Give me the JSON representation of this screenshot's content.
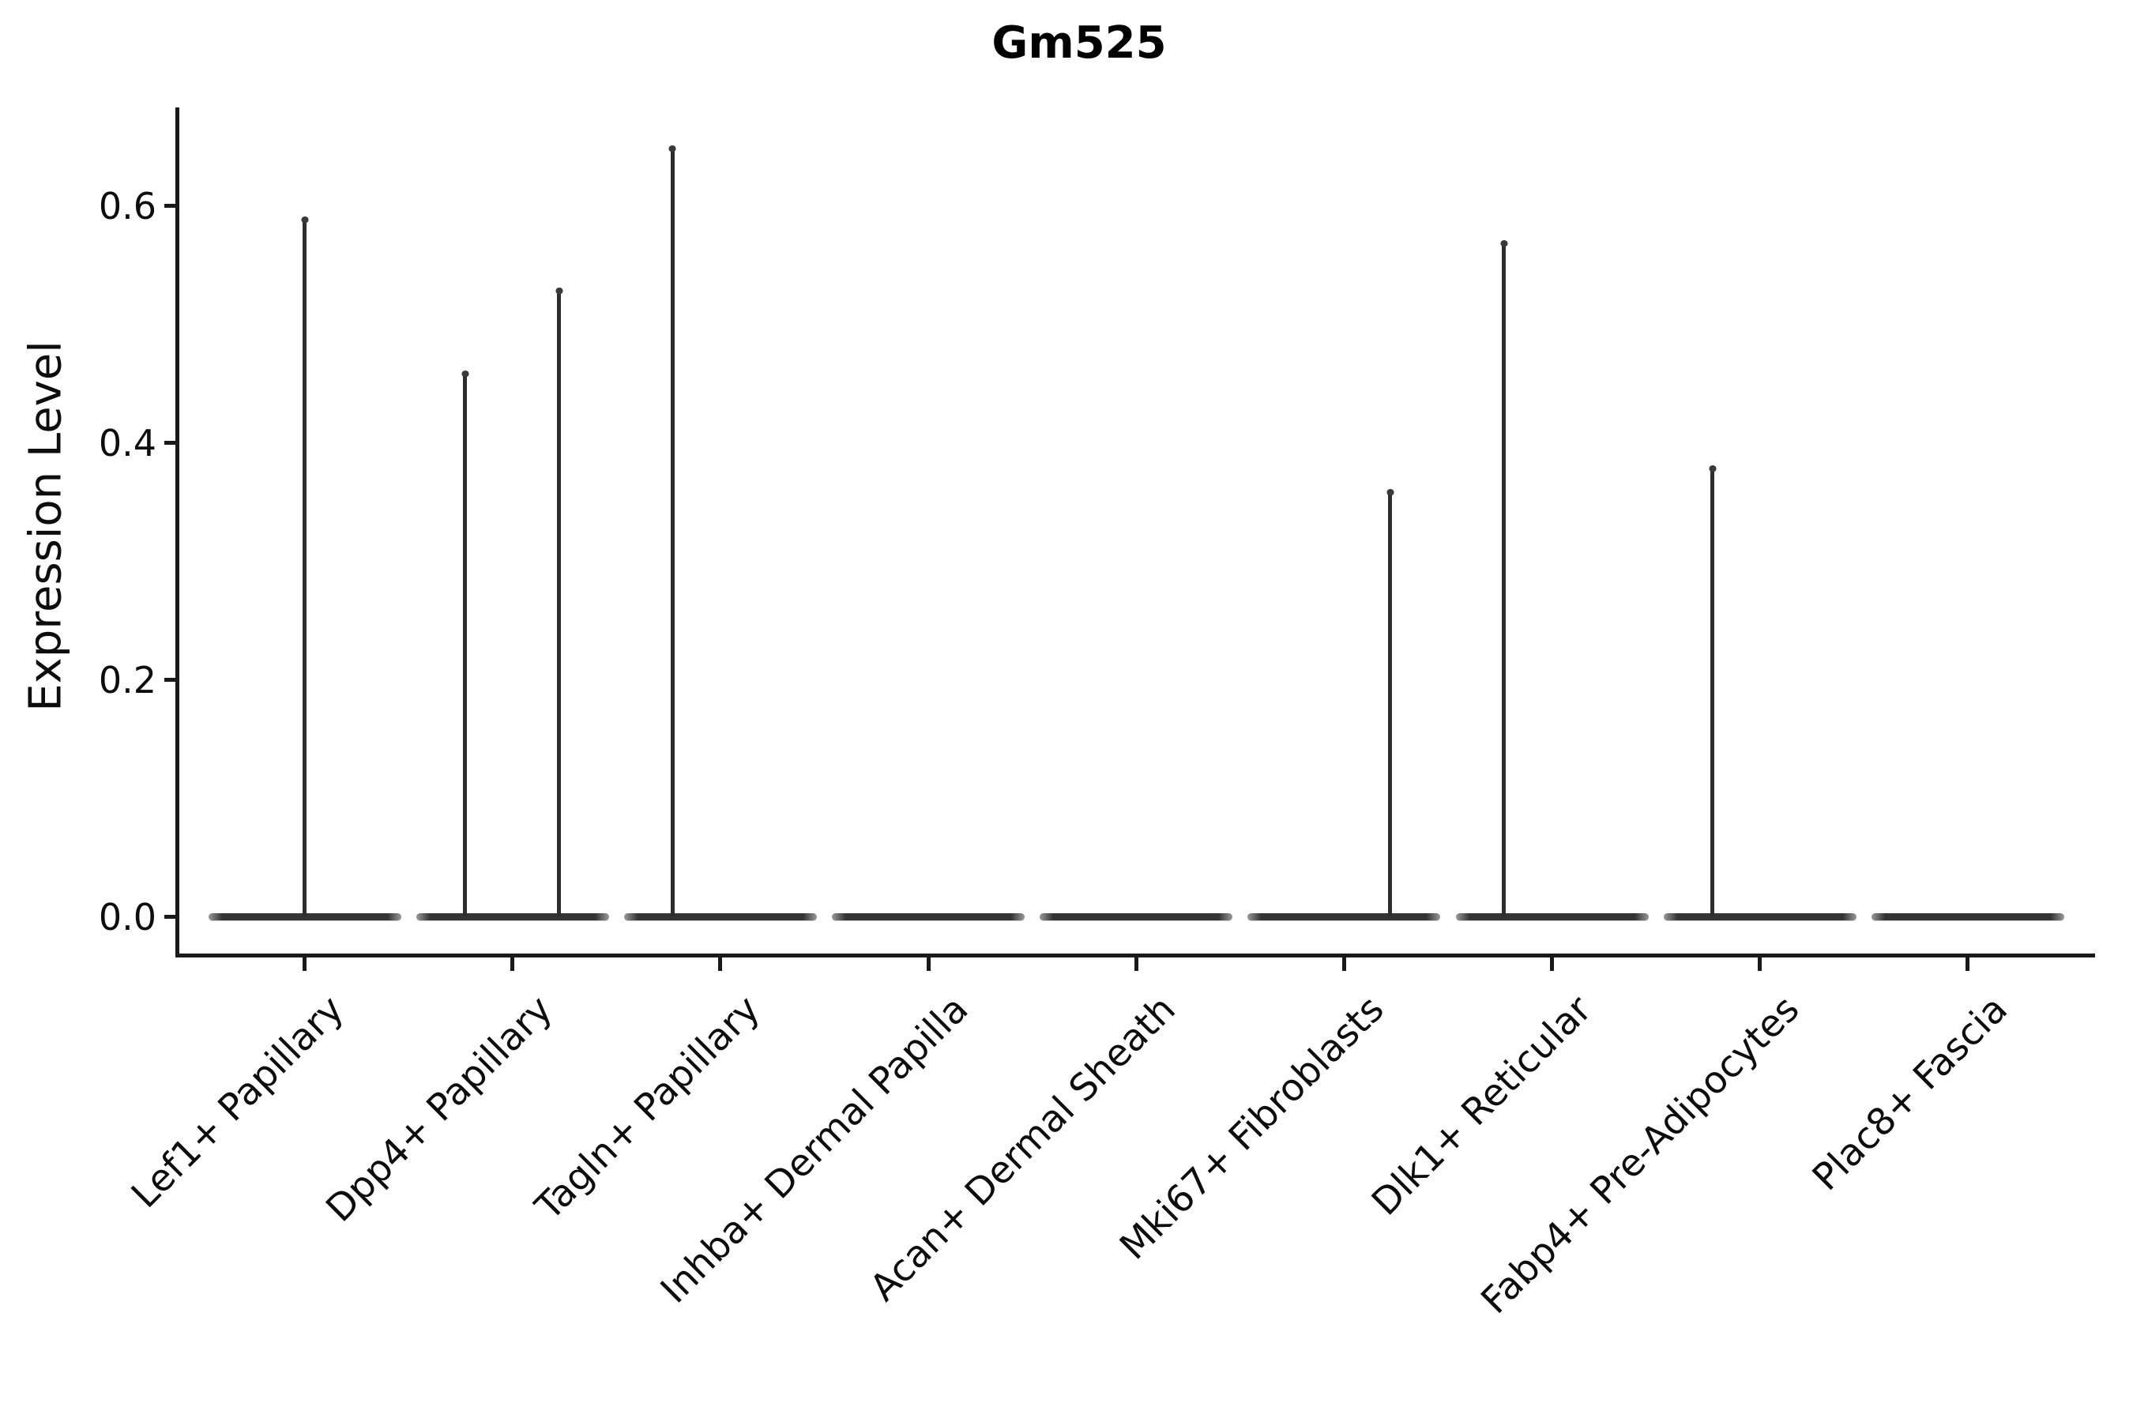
{
  "figure": {
    "title": "Gm525",
    "background_color": "#ffffff",
    "axis_color": "#1a1a1a",
    "violin_color": "#2e2e2e",
    "text_color": "#0d0d0d"
  },
  "chart_data": {
    "type": "violin",
    "title": "Gm525",
    "xlabel": "",
    "ylabel": "Expression Level",
    "ylim": [
      -0.033,
      0.683
    ],
    "grid": false,
    "legend": null,
    "yticks": [
      {
        "label": "0.0",
        "value": 0.0
      },
      {
        "label": "0.2",
        "value": 0.2
      },
      {
        "label": "0.4",
        "value": 0.4
      },
      {
        "label": "0.6",
        "value": 0.6
      }
    ],
    "categories": [
      "Lef1+ Papillary",
      "Dpp4+ Papillary",
      "Tagln+ Papillary",
      "Inhba+ Dermal Papilla",
      "Acan+ Dermal Sheath",
      "Mki67+ Fibroblasts",
      "Dlk1+ Reticular",
      "Fabp4+ Pre-Adipocytes",
      "Plac8+ Fascia"
    ],
    "violins": [
      {
        "category": "Lef1+ Papillary",
        "baseline_value": 0.0,
        "spikes": [
          {
            "offset_frac": 0.0,
            "max_value": 0.59
          }
        ]
      },
      {
        "category": "Dpp4+ Papillary",
        "baseline_value": 0.0,
        "spikes": [
          {
            "offset_frac": -0.227,
            "max_value": 0.46
          },
          {
            "offset_frac": 0.224,
            "max_value": 0.53
          }
        ]
      },
      {
        "category": "Tagln+ Papillary",
        "baseline_value": 0.0,
        "spikes": [
          {
            "offset_frac": -0.231,
            "max_value": 0.65
          }
        ]
      },
      {
        "category": "Inhba+ Dermal Papilla",
        "baseline_value": 0.0,
        "spikes": []
      },
      {
        "category": "Acan+ Dermal Sheath",
        "baseline_value": 0.0,
        "spikes": []
      },
      {
        "category": "Mki67+ Fibroblasts",
        "baseline_value": 0.0,
        "spikes": [
          {
            "offset_frac": 0.222,
            "max_value": 0.36
          }
        ]
      },
      {
        "category": "Dlk1+ Reticular",
        "baseline_value": 0.0,
        "spikes": [
          {
            "offset_frac": -0.23,
            "max_value": 0.57
          }
        ]
      },
      {
        "category": "Fabp4+ Pre-Adipocytes",
        "baseline_value": 0.0,
        "spikes": [
          {
            "offset_frac": -0.228,
            "max_value": 0.38
          }
        ]
      },
      {
        "category": "Plac8+ Fascia",
        "baseline_value": 0.0,
        "spikes": []
      }
    ]
  }
}
